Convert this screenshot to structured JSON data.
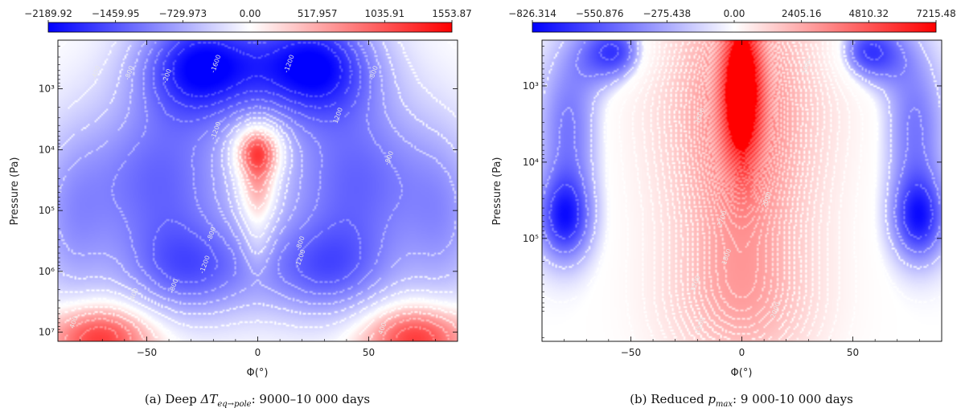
{
  "chart_data": [
    {
      "type": "heatmap",
      "panel": "a",
      "caption_prefix": "(a) Deep ",
      "caption_symbol": "ΔT",
      "caption_subscript": "eq→pole",
      "caption_suffix": ": 9000–10 000 days",
      "colorbar_ticks": [
        "−2189.92",
        "−1459.95",
        "−729.973",
        "0.00",
        "517.957",
        "1035.91",
        "1553.87"
      ],
      "vmin": -2189.92,
      "vmax": 1553.87,
      "xlabel": "Φ(°)",
      "ylabel": "Pressure (Pa)",
      "xlim": [
        -90,
        90
      ],
      "x_ticks": [
        "−50",
        "0",
        "50"
      ],
      "x_tick_values": [
        -50,
        0,
        50
      ],
      "ylim_log10": [
        2.2,
        7.15
      ],
      "y_ticks": [
        "10³",
        "10⁴",
        "10⁵",
        "10⁶",
        "10⁷"
      ],
      "y_tick_values_log10": [
        3,
        4,
        5,
        6,
        7
      ],
      "features": [
        {
          "lat": 0,
          "logp": 4.0,
          "dlat": 11,
          "dlogp": 0.45,
          "value": 1550
        },
        {
          "lat": 0,
          "logp": 4.7,
          "dlat": 9,
          "dlogp": 0.6,
          "value": 900
        },
        {
          "lat": 0,
          "logp": 5.6,
          "dlat": 7,
          "dlogp": 0.5,
          "value": 400
        },
        {
          "lat": -72,
          "logp": 7.1,
          "dlat": 24,
          "dlogp": 0.55,
          "value": 1300
        },
        {
          "lat": 72,
          "logp": 7.1,
          "dlat": 24,
          "dlogp": 0.55,
          "value": 1300
        },
        {
          "lat": -25,
          "logp": 2.6,
          "dlat": 28,
          "dlogp": 0.9,
          "value": -2100
        },
        {
          "lat": 25,
          "logp": 2.6,
          "dlat": 28,
          "dlogp": 0.9,
          "value": -2100
        },
        {
          "lat": -45,
          "logp": 4.5,
          "dlat": 35,
          "dlogp": 1.4,
          "value": -1300
        },
        {
          "lat": 45,
          "logp": 4.5,
          "dlat": 35,
          "dlogp": 1.4,
          "value": -1300
        },
        {
          "lat": -30,
          "logp": 6.0,
          "dlat": 30,
          "dlogp": 0.8,
          "value": -1200
        },
        {
          "lat": 30,
          "logp": 6.0,
          "dlat": 30,
          "dlogp": 0.8,
          "value": -1200
        },
        {
          "lat": -85,
          "logp": 5.2,
          "dlat": 18,
          "dlogp": 1.5,
          "value": -700
        },
        {
          "lat": 85,
          "logp": 5.2,
          "dlat": 18,
          "dlogp": 1.5,
          "value": -700
        }
      ],
      "contour_labels": [
        {
          "text": "-400",
          "lat": -72,
          "logp": 2.75
        },
        {
          "text": "-800",
          "lat": -57,
          "logp": 2.75
        },
        {
          "text": "-200",
          "lat": -40,
          "logp": 2.8
        },
        {
          "text": "-1600",
          "lat": -18,
          "logp": 2.6
        },
        {
          "text": "-1200",
          "lat": 15,
          "logp": 2.6
        },
        {
          "text": "-800",
          "lat": 53,
          "logp": 2.75
        },
        {
          "text": "1200",
          "lat": 37,
          "logp": 3.45
        },
        {
          "text": "-1200",
          "lat": -18,
          "logp": 3.7
        },
        {
          "text": "-800",
          "lat": 60,
          "logp": 4.15
        },
        {
          "text": "-800",
          "lat": -20,
          "logp": 5.4
        },
        {
          "text": "-800",
          "lat": 20,
          "logp": 5.55
        },
        {
          "text": "-1200",
          "lat": -23,
          "logp": 5.9
        },
        {
          "text": "-1200",
          "lat": 20,
          "logp": 5.8
        },
        {
          "text": "-800",
          "lat": -37,
          "logp": 6.25
        },
        {
          "text": "-400",
          "lat": -55,
          "logp": 6.4
        },
        {
          "text": "400",
          "lat": -82,
          "logp": 6.85
        },
        {
          "text": "400",
          "lat": 57,
          "logp": 6.95
        }
      ],
      "num_contour_levels": 14
    },
    {
      "type": "heatmap",
      "panel": "b",
      "caption_prefix": "(b) Reduced ",
      "caption_symbol": "p",
      "caption_subscript": "max",
      "caption_suffix": ": 9 000-10 000 days",
      "colorbar_ticks": [
        "−826.314",
        "−550.876",
        "−275.438",
        "0.00",
        "2405.16",
        "4810.32",
        "7215.48"
      ],
      "vmin": -826.314,
      "vmax": 7215.48,
      "xlabel": "Φ(°)",
      "ylabel": "Pressure (Pa)",
      "xlim": [
        -90,
        90
      ],
      "x_ticks": [
        "−50",
        "0",
        "50"
      ],
      "x_tick_values": [
        -50,
        0,
        50
      ],
      "ylim_log10": [
        2.4,
        6.35
      ],
      "y_ticks": [
        "10³",
        "10⁴",
        "10⁵"
      ],
      "y_tick_values_log10": [
        3,
        4,
        5
      ],
      "features": [
        {
          "lat": 0,
          "logp": 3.0,
          "dlat": 9,
          "dlogp": 1.0,
          "value": 7215
        },
        {
          "lat": 0,
          "logp": 4.3,
          "dlat": 30,
          "dlogp": 1.6,
          "value": 2600
        },
        {
          "lat": 0,
          "logp": 2.8,
          "dlat": 36,
          "dlogp": 1.4,
          "value": 2100
        },
        {
          "lat": 0,
          "logp": 5.9,
          "dlat": 32,
          "dlogp": 0.9,
          "value": 1700
        },
        {
          "lat": -55,
          "logp": 2.55,
          "dlat": 18,
          "dlogp": 0.45,
          "value": -820
        },
        {
          "lat": 55,
          "logp": 2.55,
          "dlat": 18,
          "dlogp": 0.45,
          "value": -820
        },
        {
          "lat": -80,
          "logp": 4.75,
          "dlat": 13,
          "dlogp": 0.6,
          "value": -700
        },
        {
          "lat": 80,
          "logp": 4.75,
          "dlat": 13,
          "dlogp": 0.6,
          "value": -700
        },
        {
          "lat": -78,
          "logp": 3.5,
          "dlat": 15,
          "dlogp": 1.0,
          "value": -450
        },
        {
          "lat": 78,
          "logp": 3.5,
          "dlat": 15,
          "dlogp": 1.0,
          "value": -450
        }
      ],
      "contour_labels": [
        {
          "text": "2700",
          "lat": -8,
          "logp": 4.75
        },
        {
          "text": "2000",
          "lat": 12,
          "logp": 4.5
        },
        {
          "text": "1600",
          "lat": -18,
          "logp": 3.4
        },
        {
          "text": "2200",
          "lat": -20,
          "logp": 5.6
        },
        {
          "text": "1800",
          "lat": -6,
          "logp": 5.25
        },
        {
          "text": "2000",
          "lat": 16,
          "logp": 5.95
        },
        {
          "text": "1500",
          "lat": -18,
          "logp": 6.15
        },
        {
          "text": "1600",
          "lat": 30,
          "logp": 2.75
        }
      ],
      "num_contour_levels": 40
    }
  ]
}
